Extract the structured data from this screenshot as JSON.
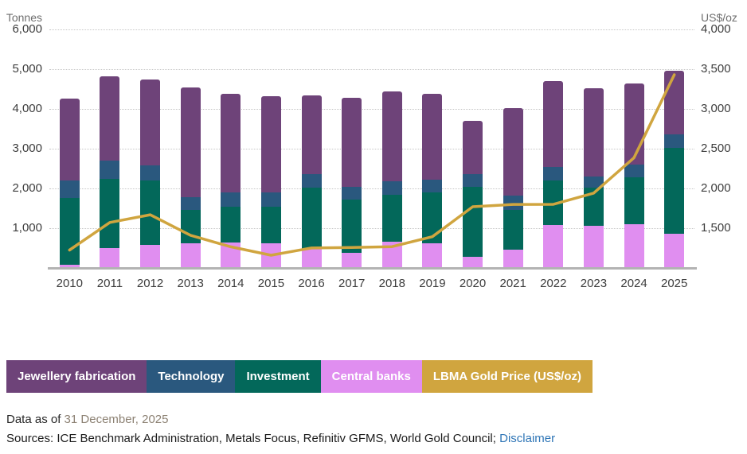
{
  "chart_data": {
    "type": "bar",
    "subtype": "stacked-bars-with-line-overlay",
    "categories": [
      "2010",
      "2011",
      "2012",
      "2013",
      "2014",
      "2015",
      "2016",
      "2017",
      "2018",
      "2019",
      "2020",
      "2021",
      "2022",
      "2023",
      "2024",
      "2025"
    ],
    "series": [
      {
        "name": "Jewellery fabrication",
        "type": "bar",
        "color": "#6e4379",
        "values": [
          2070,
          2110,
          2160,
          2770,
          2490,
          2420,
          1970,
          2240,
          2270,
          2160,
          1330,
          2210,
          2150,
          2220,
          2040,
          1600
        ]
      },
      {
        "name": "Technology",
        "type": "bar",
        "color": "#2a587e",
        "values": [
          430,
          460,
          380,
          310,
          350,
          360,
          340,
          330,
          340,
          320,
          320,
          350,
          340,
          270,
          330,
          340
        ]
      },
      {
        "name": "Investment",
        "type": "bar",
        "color": "#03685a",
        "values": [
          1680,
          1750,
          1620,
          840,
          910,
          930,
          1540,
          1330,
          1180,
          1280,
          1770,
          1010,
          1130,
          970,
          1170,
          2160
        ]
      },
      {
        "name": "Central banks",
        "type": "bar",
        "color": "#e08ef0",
        "values": [
          90,
          500,
          580,
          630,
          640,
          620,
          490,
          390,
          660,
          630,
          280,
          460,
          1080,
          1060,
          1110,
          870
        ]
      },
      {
        "name": "LBMA Gold Price (US$/oz)",
        "type": "line",
        "axis": "right",
        "color": "#d0a53f",
        "values": [
          1225,
          1572,
          1669,
          1411,
          1266,
          1160,
          1251,
          1257,
          1268,
          1393,
          1770,
          1799,
          1800,
          1941,
          2386,
          3430
        ]
      }
    ],
    "stack_order_bottom_to_top": [
      "Central banks",
      "Investment",
      "Technology",
      "Jewellery fabrication"
    ],
    "left_axis": {
      "title": "Tonnes",
      "ticks": [
        "6,000",
        "5,000",
        "4,000",
        "3,000",
        "2,000",
        "1,000"
      ],
      "range": [
        0,
        6000
      ]
    },
    "right_axis": {
      "title": "US$/oz",
      "ticks": [
        "4,000",
        "3,500",
        "3,000",
        "2,500",
        "2,000",
        "1,500"
      ],
      "range": [
        1000,
        4000
      ]
    },
    "grid": "horizontal-dotted",
    "legend_position": "bottom"
  },
  "legend": {
    "items": [
      {
        "label": "Jewellery fabrication",
        "color": "#6e4379"
      },
      {
        "label": "Technology",
        "color": "#2a587e"
      },
      {
        "label": "Investment",
        "color": "#03685a"
      },
      {
        "label": "Central banks",
        "color": "#e08ef0"
      },
      {
        "label": "LBMA Gold Price (US$/oz)",
        "color": "#d0a53f"
      }
    ]
  },
  "footer": {
    "data_as_of_label": "Data as of ",
    "data_as_of_date": "31 December, 2025",
    "sources_text": "Sources: ICE Benchmark Administration, Metals Focus, Refinitiv GFMS, World Gold Council; ",
    "disclaimer_label": "Disclaimer"
  }
}
